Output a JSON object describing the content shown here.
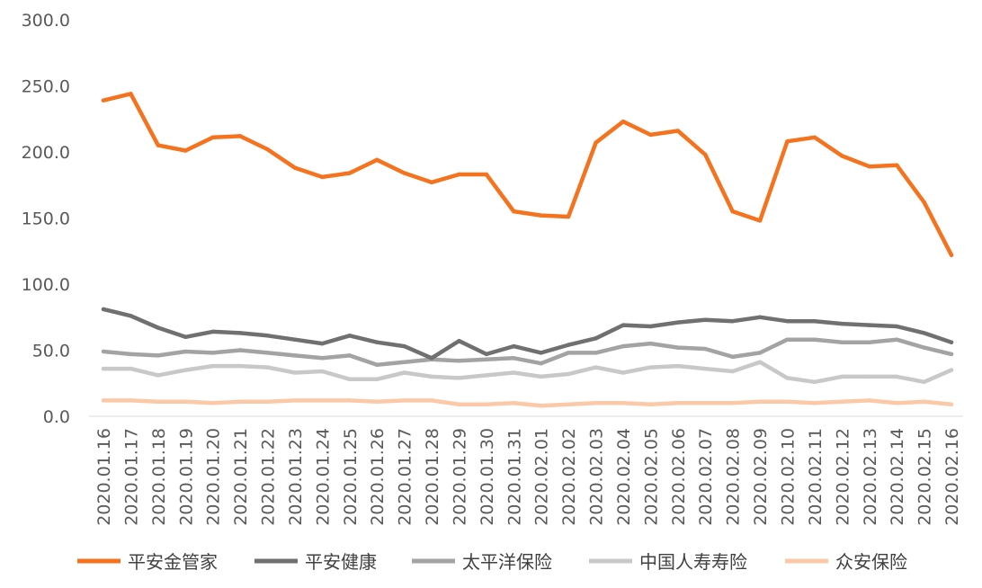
{
  "chart_data": {
    "type": "line",
    "title": "",
    "xlabel": "",
    "ylabel": "",
    "ylim": [
      0,
      300
    ],
    "yticks": [
      "0.0",
      "50.0",
      "100.0",
      "150.0",
      "200.0",
      "250.0",
      "300.0"
    ],
    "grid": false,
    "legend_position": "bottom",
    "categories": [
      "2020.01.16",
      "2020.01.17",
      "2020.01.18",
      "2020.01.19",
      "2020.01.20",
      "2020.01.21",
      "2020.01.22",
      "2020.01.23",
      "2020.01.24",
      "2020.01.25",
      "2020.01.26",
      "2020.01.27",
      "2020.01.28",
      "2020.01.29",
      "2020.01.30",
      "2020.01.31",
      "2020.02.01",
      "2020.02.02",
      "2020.02.03",
      "2020.02.04",
      "2020.02.05",
      "2020.02.06",
      "2020.02.07",
      "2020.02.08",
      "2020.02.09",
      "2020.02.10",
      "2020.02.11",
      "2020.02.12",
      "2020.02.13",
      "2020.02.14",
      "2020.02.15",
      "2020.02.16"
    ],
    "series": [
      {
        "name": "平安金管家",
        "color": "#F5731E",
        "values": [
          239,
          244,
          205,
          201,
          211,
          212,
          202,
          188,
          181,
          184,
          194,
          184,
          177,
          183,
          183,
          155,
          152,
          151,
          207,
          223,
          213,
          216,
          198,
          155,
          148,
          208,
          211,
          197,
          189,
          190,
          162,
          122
        ]
      },
      {
        "name": "平安健康",
        "color": "#707070",
        "values": [
          81,
          76,
          67,
          60,
          64,
          63,
          61,
          58,
          55,
          61,
          56,
          53,
          44,
          57,
          47,
          53,
          48,
          54,
          59,
          69,
          68,
          71,
          73,
          72,
          75,
          72,
          72,
          70,
          69,
          68,
          63,
          56
        ]
      },
      {
        "name": "太平洋保险",
        "color": "#A3A3A3",
        "values": [
          49,
          47,
          46,
          49,
          48,
          50,
          48,
          46,
          44,
          46,
          39,
          41,
          43,
          42,
          43,
          44,
          40,
          48,
          48,
          53,
          55,
          52,
          51,
          45,
          48,
          58,
          58,
          56,
          56,
          58,
          52,
          47
        ]
      },
      {
        "name": "中国人寿寿险",
        "color": "#C8C8C8",
        "values": [
          36,
          36,
          31,
          35,
          38,
          38,
          37,
          33,
          34,
          28,
          28,
          33,
          30,
          29,
          31,
          33,
          30,
          32,
          37,
          33,
          37,
          38,
          36,
          34,
          41,
          29,
          26,
          30,
          30,
          30,
          26,
          35
        ]
      },
      {
        "name": "众安保险",
        "color": "#FBC9A8",
        "values": [
          12,
          12,
          11,
          11,
          10,
          11,
          11,
          12,
          12,
          12,
          11,
          12,
          12,
          9,
          9,
          10,
          8,
          9,
          10,
          10,
          9,
          10,
          10,
          10,
          11,
          11,
          10,
          11,
          12,
          10,
          11,
          9
        ]
      }
    ]
  }
}
